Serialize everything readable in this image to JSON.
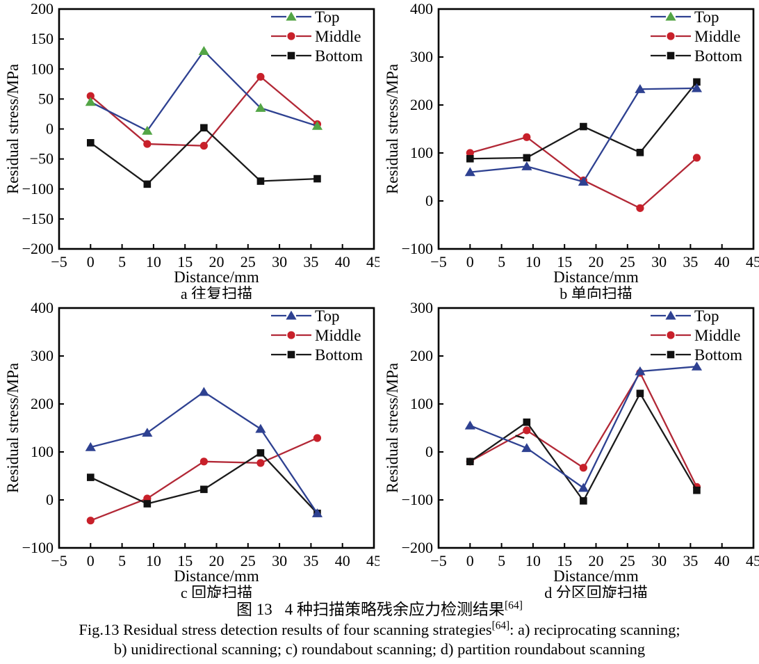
{
  "figure": {
    "caption_zh_prefix": "图 13",
    "caption_zh_text": "4 种扫描策略残余应力检测结果",
    "caption_ref": "[64]",
    "caption_en_pre": "Fig.13 Residual stress detection results of four scanning strategies",
    "caption_en_post": ": a) reciprocating scanning;",
    "caption_en_line2": "b) unidirectional scanning; c) roundabout scanning; d) partition roundabout scanning"
  },
  "colors": {
    "top_line": "#2e4191",
    "top_marker_green": "#53a546",
    "top_marker_blue": "#2e4191",
    "middle_line": "#b22836",
    "middle_marker": "#c8202a",
    "bottom_line": "#1a1a1a",
    "bottom_marker": "#111111",
    "axis": "#000000"
  },
  "chart_data": [
    {
      "id": "a",
      "type": "line",
      "caption": "a 往复扫描",
      "xlabel": "Distance/mm",
      "ylabel": "Residual stress/MPa",
      "xlim": [
        -5,
        45
      ],
      "xtick_step": 5,
      "ylim": [
        -200,
        200
      ],
      "ytick_step": 50,
      "grid": false,
      "legend_position": "top-right",
      "x": [
        0,
        9,
        18,
        27,
        36
      ],
      "series": [
        {
          "name": "Top",
          "marker": "triangle",
          "line_color": "#2e4191",
          "marker_color": "#53a546",
          "legend_marker_color": "#53a546",
          "values": [
            45,
            -3,
            130,
            35,
            5
          ]
        },
        {
          "name": "Middle",
          "marker": "circle",
          "line_color": "#b22836",
          "marker_color": "#c8202a",
          "legend_marker_color": "#c8202a",
          "values": [
            55,
            -25,
            -28,
            87,
            8
          ]
        },
        {
          "name": "Bottom",
          "marker": "square",
          "line_color": "#1a1a1a",
          "marker_color": "#111111",
          "legend_marker_color": "#111111",
          "values": [
            -23,
            -92,
            2,
            -87,
            -83
          ]
        }
      ]
    },
    {
      "id": "b",
      "type": "line",
      "caption": "b 单向扫描",
      "xlabel": "Distance/mm",
      "ylabel": "Residual stress/MPa",
      "xlim": [
        -5,
        45
      ],
      "xtick_step": 5,
      "ylim": [
        -100,
        400
      ],
      "ytick_step": 100,
      "grid": false,
      "legend_position": "top-right",
      "x": [
        0,
        9,
        18,
        27,
        36
      ],
      "series": [
        {
          "name": "Top",
          "marker": "triangle",
          "line_color": "#2e4191",
          "marker_color": "#2e4191",
          "legend_marker_color": "#53a546",
          "values": [
            60,
            72,
            40,
            233,
            235
          ]
        },
        {
          "name": "Middle",
          "marker": "circle",
          "line_color": "#b22836",
          "marker_color": "#c8202a",
          "legend_marker_color": "#c8202a",
          "values": [
            100,
            133,
            43,
            -15,
            90
          ]
        },
        {
          "name": "Bottom",
          "marker": "square",
          "line_color": "#1a1a1a",
          "marker_color": "#111111",
          "legend_marker_color": "#111111",
          "values": [
            88,
            90,
            155,
            101,
            248
          ]
        }
      ]
    },
    {
      "id": "c",
      "type": "line",
      "caption": "c 回旋扫描",
      "xlabel": "Distance/mm",
      "ylabel": "Residual stress/MPa",
      "xlim": [
        -5,
        45
      ],
      "xtick_step": 5,
      "ylim": [
        -100,
        400
      ],
      "ytick_step": 100,
      "grid": false,
      "legend_position": "top-right",
      "x": [
        0,
        9,
        18,
        27,
        36
      ],
      "series": [
        {
          "name": "Top",
          "marker": "triangle",
          "line_color": "#2e4191",
          "marker_color": "#2e4191",
          "legend_marker_color": "#2e4191",
          "values": [
            110,
            140,
            225,
            148,
            -28
          ]
        },
        {
          "name": "Middle",
          "marker": "circle",
          "line_color": "#b22836",
          "marker_color": "#c8202a",
          "legend_marker_color": "#c8202a",
          "values": [
            -43,
            3,
            80,
            77,
            129
          ]
        },
        {
          "name": "Bottom",
          "marker": "square",
          "line_color": "#1a1a1a",
          "marker_color": "#111111",
          "legend_marker_color": "#111111",
          "values": [
            47,
            -8,
            22,
            98,
            -28
          ]
        }
      ]
    },
    {
      "id": "d",
      "type": "line",
      "caption": "d 分区回旋扫描",
      "xlabel": "Distance/mm",
      "ylabel": "Residual stress/MPa",
      "xlim": [
        -5,
        45
      ],
      "xtick_step": 5,
      "ylim": [
        -200,
        300
      ],
      "ytick_step": 100,
      "grid": false,
      "legend_position": "top-right",
      "x": [
        0,
        9,
        18,
        27,
        36
      ],
      "stray_mark": {
        "x1": 7.2,
        "y1": 34,
        "x2": 8.6,
        "y2": 29
      },
      "series": [
        {
          "name": "Top",
          "marker": "triangle",
          "line_color": "#2e4191",
          "marker_color": "#2e4191",
          "legend_marker_color": "#2e4191",
          "values": [
            55,
            8,
            -75,
            168,
            178
          ]
        },
        {
          "name": "Middle",
          "marker": "circle",
          "line_color": "#b22836",
          "marker_color": "#c8202a",
          "legend_marker_color": "#c8202a",
          "values": [
            -20,
            45,
            -33,
            165,
            -73
          ]
        },
        {
          "name": "Bottom",
          "marker": "square",
          "line_color": "#1a1a1a",
          "marker_color": "#111111",
          "legend_marker_color": "#111111",
          "values": [
            -20,
            62,
            -102,
            122,
            -80
          ]
        }
      ]
    }
  ]
}
